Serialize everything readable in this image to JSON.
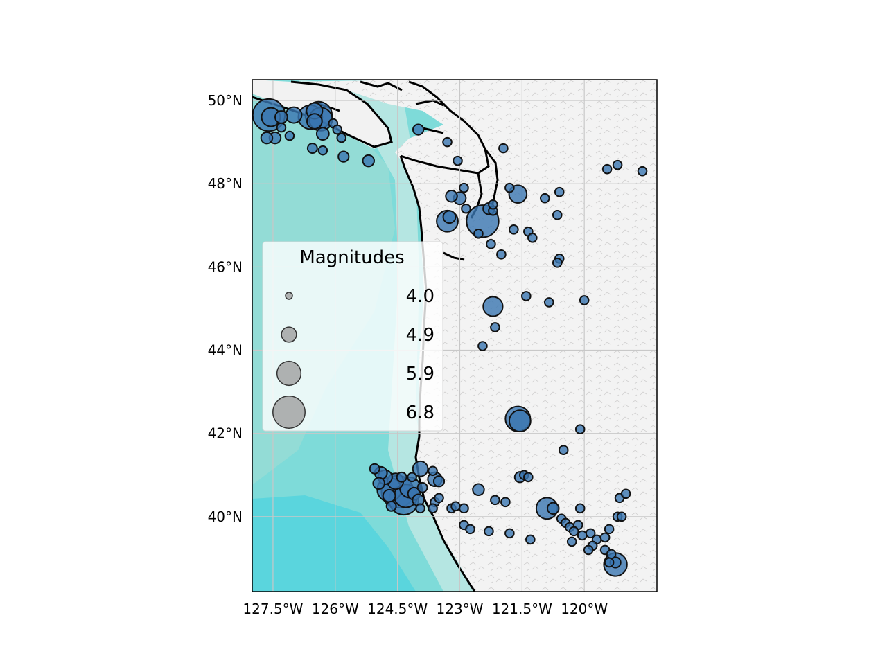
{
  "map": {
    "type": "scatter-map",
    "extent": {
      "lon": [
        -128.0,
        -118.25
      ],
      "lat": [
        38.2,
        50.5
      ]
    },
    "x_ticks": [
      {
        "lon": -127.5,
        "label": "127.5°W"
      },
      {
        "lon": -126.0,
        "label": "126°W"
      },
      {
        "lon": -124.5,
        "label": "124.5°W"
      },
      {
        "lon": -123.0,
        "label": "123°W"
      },
      {
        "lon": -121.5,
        "label": "121.5°W"
      },
      {
        "lon": -120.0,
        "label": "120°W"
      }
    ],
    "y_ticks": [
      {
        "lat": 50,
        "label": "50°N"
      },
      {
        "lat": 48,
        "label": "48°N"
      },
      {
        "lat": 46,
        "label": "46°N"
      },
      {
        "lat": 44,
        "label": "44°N"
      },
      {
        "lat": 42,
        "label": "42°N"
      },
      {
        "lat": 40,
        "label": "40°N"
      }
    ],
    "grid": true,
    "colors": {
      "marker_fill": "#3a76b0",
      "marker_edge": "#111111",
      "legend_marker_fill": "#9a9a9a",
      "ocean_deep": "#5ad6de",
      "ocean_shallow": "#b5e6e2",
      "land": "#f2f2f2",
      "coast": "#000000",
      "grid": "#c8c8c8"
    }
  },
  "legend": {
    "title": "Magnitudes",
    "placement": "center-left",
    "entries": [
      {
        "label": "4.0",
        "magnitude": 4.0
      },
      {
        "label": "4.9",
        "magnitude": 4.9
      },
      {
        "label": "5.9",
        "magnitude": 5.9
      },
      {
        "label": "6.8",
        "magnitude": 6.8
      }
    ]
  },
  "chart_data": {
    "type": "scatter",
    "x_quantity": "longitude",
    "y_quantity": "latitude",
    "size_quantity": "magnitude",
    "points": [
      [
        -127.6,
        49.65,
        6.8
      ],
      [
        -127.55,
        49.6,
        5.3
      ],
      [
        -127.3,
        49.6,
        4.6
      ],
      [
        -127.3,
        49.35,
        4.2
      ],
      [
        -127.45,
        49.1,
        4.5
      ],
      [
        -127.65,
        49.1,
        4.5
      ],
      [
        -127.1,
        49.15,
        4.2
      ],
      [
        -127.0,
        49.65,
        5.0
      ],
      [
        -126.6,
        49.6,
        5.9
      ],
      [
        -126.4,
        49.65,
        6.2
      ],
      [
        -126.5,
        49.75,
        5.0
      ],
      [
        -126.35,
        49.55,
        5.8
      ],
      [
        -126.5,
        49.5,
        4.9
      ],
      [
        -126.3,
        49.2,
        4.6
      ],
      [
        -126.55,
        48.85,
        4.3
      ],
      [
        -126.3,
        48.8,
        4.2
      ],
      [
        -126.05,
        49.45,
        4.2
      ],
      [
        -125.95,
        49.3,
        4.2
      ],
      [
        -125.85,
        49.1,
        4.2
      ],
      [
        -125.8,
        48.65,
        4.4
      ],
      [
        -125.2,
        48.55,
        4.5
      ],
      [
        -124.0,
        49.3,
        4.4
      ],
      [
        -123.3,
        49.0,
        4.2
      ],
      [
        -123.05,
        48.55,
        4.2
      ],
      [
        -123.2,
        47.7,
        4.5
      ],
      [
        -122.9,
        47.9,
        4.2
      ],
      [
        -123.3,
        47.1,
        5.6
      ],
      [
        -123.25,
        47.2,
        4.6
      ],
      [
        -123.0,
        47.65,
        4.6
      ],
      [
        -122.85,
        47.4,
        4.2
      ],
      [
        -122.45,
        47.1,
        6.8
      ],
      [
        -122.55,
        46.8,
        4.2
      ],
      [
        -122.3,
        47.4,
        4.5
      ],
      [
        -122.2,
        47.35,
        4.2
      ],
      [
        -122.2,
        47.5,
        4.2
      ],
      [
        -122.25,
        46.55,
        4.2
      ],
      [
        -121.95,
        48.85,
        4.2
      ],
      [
        -122.0,
        46.3,
        4.2
      ],
      [
        -121.8,
        47.9,
        4.2
      ],
      [
        -121.6,
        47.75,
        5.2
      ],
      [
        -121.7,
        46.9,
        4.2
      ],
      [
        -121.35,
        46.85,
        4.2
      ],
      [
        -121.25,
        46.7,
        4.2
      ],
      [
        -120.95,
        47.65,
        4.2
      ],
      [
        -120.6,
        47.8,
        4.2
      ],
      [
        -120.65,
        47.25,
        4.2
      ],
      [
        -120.6,
        46.2,
        4.2
      ],
      [
        -120.65,
        46.1,
        4.2
      ],
      [
        -119.45,
        48.35,
        4.2
      ],
      [
        -119.2,
        48.45,
        4.2
      ],
      [
        -118.6,
        48.3,
        4.2
      ],
      [
        -121.4,
        45.3,
        4.2
      ],
      [
        -120.85,
        45.15,
        4.2
      ],
      [
        -120.0,
        45.2,
        4.2
      ],
      [
        -122.2,
        45.05,
        5.4
      ],
      [
        -122.15,
        44.55,
        4.2
      ],
      [
        -122.45,
        44.1,
        4.2
      ],
      [
        -121.6,
        42.35,
        6.0
      ],
      [
        -121.55,
        42.3,
        5.6
      ],
      [
        -120.1,
        42.1,
        4.2
      ],
      [
        -120.5,
        41.6,
        4.2
      ],
      [
        -120.1,
        40.2,
        4.2
      ],
      [
        -123.95,
        41.15,
        4.9
      ],
      [
        -123.65,
        41.1,
        4.2
      ],
      [
        -124.5,
        40.6,
        6.8
      ],
      [
        -124.7,
        40.65,
        5.9
      ],
      [
        -124.35,
        40.4,
        6.5
      ],
      [
        -124.3,
        40.5,
        5.8
      ],
      [
        -124.2,
        40.7,
        5.5
      ],
      [
        -124.55,
        40.85,
        5.0
      ],
      [
        -124.8,
        40.95,
        4.8
      ],
      [
        -124.9,
        41.05,
        4.6
      ],
      [
        -125.05,
        41.15,
        4.3
      ],
      [
        -124.95,
        40.8,
        4.5
      ],
      [
        -124.7,
        40.5,
        4.6
      ],
      [
        -124.1,
        40.55,
        4.6
      ],
      [
        -124.0,
        40.4,
        4.5
      ],
      [
        -123.9,
        40.7,
        4.3
      ],
      [
        -124.4,
        40.95,
        4.3
      ],
      [
        -124.65,
        40.25,
        4.3
      ],
      [
        -124.15,
        40.95,
        4.2
      ],
      [
        -123.95,
        40.2,
        4.2
      ],
      [
        -123.6,
        40.35,
        4.2
      ],
      [
        -123.5,
        40.45,
        4.2
      ],
      [
        -123.2,
        40.2,
        4.2
      ],
      [
        -123.6,
        40.9,
        4.8
      ],
      [
        -123.5,
        40.85,
        4.4
      ],
      [
        -123.65,
        40.2,
        4.2
      ],
      [
        -123.1,
        40.25,
        4.2
      ],
      [
        -122.9,
        40.2,
        4.2
      ],
      [
        -122.9,
        39.8,
        4.2
      ],
      [
        -122.55,
        40.65,
        4.5
      ],
      [
        -122.15,
        40.4,
        4.2
      ],
      [
        -121.9,
        40.35,
        4.2
      ],
      [
        -121.55,
        40.95,
        4.4
      ],
      [
        -121.45,
        41.0,
        4.2
      ],
      [
        -121.35,
        40.95,
        4.2
      ],
      [
        -120.9,
        40.2,
        5.6
      ],
      [
        -120.75,
        40.2,
        4.5
      ],
      [
        -120.55,
        39.95,
        4.2
      ],
      [
        -120.45,
        39.85,
        4.2
      ],
      [
        -120.35,
        39.75,
        4.2
      ],
      [
        -120.15,
        39.8,
        4.2
      ],
      [
        -120.25,
        39.65,
        4.2
      ],
      [
        -120.05,
        39.55,
        4.2
      ],
      [
        -120.3,
        39.4,
        4.2
      ],
      [
        -119.85,
        39.6,
        4.2
      ],
      [
        -119.7,
        39.45,
        4.2
      ],
      [
        -119.8,
        39.3,
        4.2
      ],
      [
        -119.9,
        39.2,
        4.2
      ],
      [
        -119.5,
        39.5,
        4.2
      ],
      [
        -119.4,
        39.7,
        4.2
      ],
      [
        -119.5,
        39.2,
        4.2
      ],
      [
        -119.35,
        39.1,
        4.2
      ],
      [
        -119.4,
        38.9,
        4.2
      ],
      [
        -119.25,
        38.85,
        5.8
      ],
      [
        -119.25,
        38.9,
        4.4
      ],
      [
        -119.15,
        40.45,
        4.2
      ],
      [
        -119.0,
        40.55,
        4.2
      ],
      [
        -119.2,
        40.0,
        4.2
      ],
      [
        -119.1,
        40.0,
        4.2
      ],
      [
        -122.3,
        39.65,
        4.2
      ],
      [
        -121.8,
        39.6,
        4.2
      ],
      [
        -121.3,
        39.45,
        4.2
      ],
      [
        -122.75,
        39.7,
        4.2
      ]
    ]
  }
}
